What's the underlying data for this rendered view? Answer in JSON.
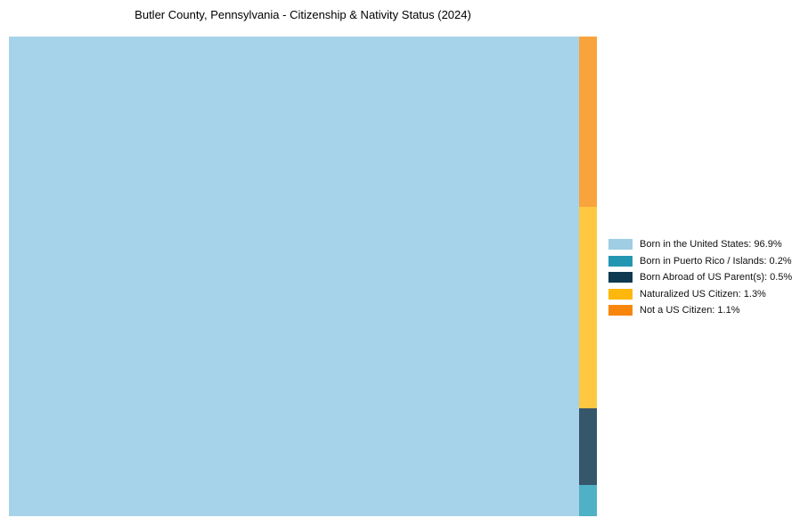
{
  "chart_data": {
    "type": "treemap",
    "title": "Butler County, Pennsylvania - Citizenship & Nativity Status (2024)",
    "legend_position": "right",
    "value_suffix": "%",
    "total": 100.0,
    "segments": [
      {
        "label": "Born in the United States",
        "value": 96.9,
        "fill": "#A7D3EA",
        "legend_color": "#9FCDE4"
      },
      {
        "label": "Born in Puerto Rico / Islands",
        "value": 0.2,
        "fill": "#4FB1C6",
        "legend_color": "#2397B2"
      },
      {
        "label": "Born Abroad of US Parent(s)",
        "value": 0.5,
        "fill": "#36566B",
        "legend_color": "#0E3951"
      },
      {
        "label": "Naturalized US Citizen",
        "value": 1.3,
        "fill": "#FEC841",
        "legend_color": "#FEB70C"
      },
      {
        "label": "Not a US Citizen",
        "value": 1.1,
        "fill": "#F9A33C",
        "legend_color": "#F8860D"
      }
    ],
    "column_order_top_to_bottom": [
      "Not a US Citizen",
      "Naturalized US Citizen",
      "Born Abroad of US Parent(s)",
      "Born in Puerto Rico / Islands"
    ]
  }
}
